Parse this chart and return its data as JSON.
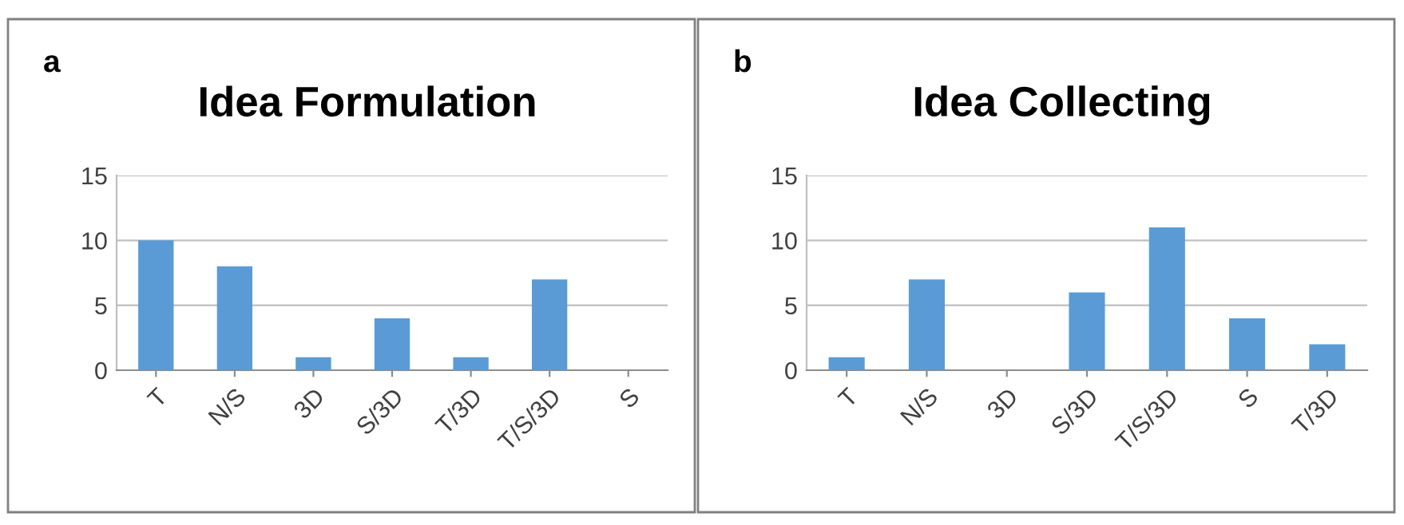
{
  "chart_data": [
    {
      "type": "bar",
      "title": "Idea Formulation",
      "annotations": [
        "a"
      ],
      "categories": [
        "T",
        "N/S",
        "3D",
        "S/3D",
        "T/3D",
        "T/S/3D",
        "S"
      ],
      "values": [
        10,
        8,
        1,
        4,
        1,
        7,
        0
      ],
      "color": "#5b9bd5",
      "ylim": [
        0,
        15
      ],
      "yticks": [
        0,
        5,
        10,
        15
      ],
      "grid": "y",
      "legend": false
    },
    {
      "type": "bar",
      "title": "Idea Collecting",
      "annotations": [
        "b"
      ],
      "categories": [
        "T",
        "N/S",
        "3D",
        "S/3D",
        "T/S/3D",
        "S",
        "T/3D"
      ],
      "values": [
        1,
        7,
        0,
        6,
        11,
        4,
        2
      ],
      "color": "#5b9bd5",
      "ylim": [
        0,
        15
      ],
      "yticks": [
        0,
        5,
        10,
        15
      ],
      "grid": "y",
      "legend": false
    }
  ]
}
